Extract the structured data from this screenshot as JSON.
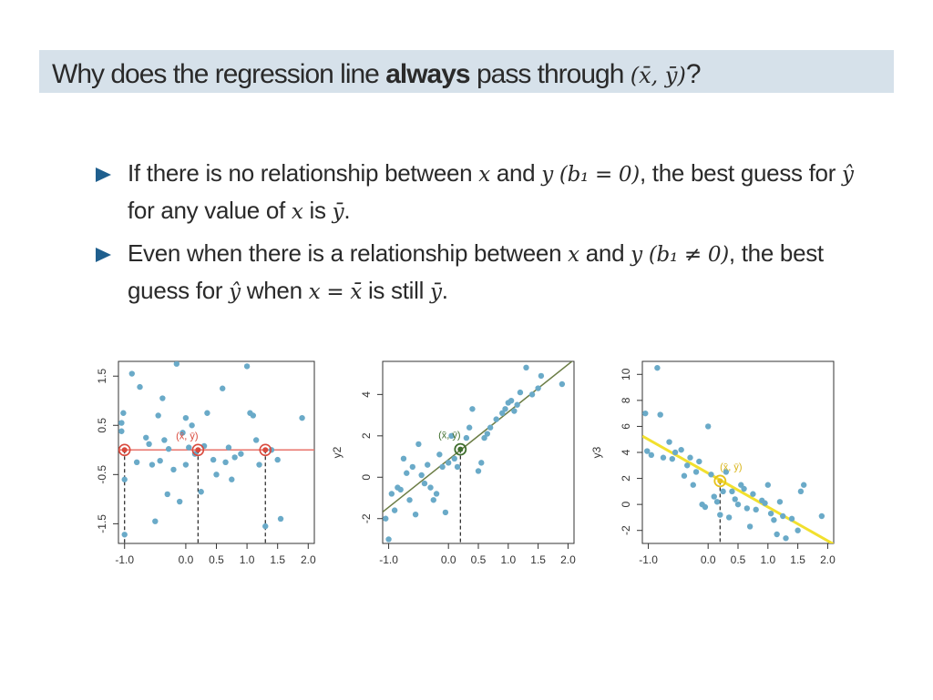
{
  "slide": {
    "title_pre": "Why does the regression line ",
    "title_bold": "always",
    "title_post": " pass through ",
    "title_math": "(x̄, ȳ)",
    "title_end": "?"
  },
  "bullets": [
    {
      "p1": "If there is no relationship between ",
      "m1": "x",
      "p2": " and ",
      "m2": "y (b₁ = 0)",
      "p3": ", the best guess for ",
      "m3": "ŷ",
      "p4": " for any value of ",
      "m4": "x",
      "p5": " is ",
      "m5": "ȳ",
      "p6": "."
    },
    {
      "p1": "Even when there is a relationship between ",
      "m1": "x",
      "p2": " and ",
      "m2": "y (b₁ ≠ 0)",
      "p3": ", the best guess for ",
      "m3": "ŷ",
      "p4": " when ",
      "m4": "x = x̄",
      "p5": " is still ",
      "m5": "ȳ",
      "p6": "."
    }
  ],
  "chart_data": [
    {
      "type": "scatter",
      "ylabel": "",
      "xlabel": "",
      "xlim": [
        -1.1,
        2.1
      ],
      "ylim": [
        -1.9,
        1.8
      ],
      "xticks": [
        "-1.0",
        "0.0",
        "0.5",
        "1.0",
        "1.5",
        "2.0"
      ],
      "xtick_values": [
        -1.0,
        0.0,
        0.5,
        1.0,
        1.5,
        2.0
      ],
      "yticks": [
        "-1.5",
        "-0.5",
        "0.5",
        "1.5"
      ],
      "ytick_values": [
        -1.5,
        -0.5,
        0.5,
        1.5
      ],
      "point_color": "#6aaac8",
      "line_color": "#e8736b",
      "line": {
        "intercept": 0.0,
        "slope": 0.0
      },
      "mean_label": "(x̄, ȳ)",
      "mean_point": [
        0.2,
        0.0
      ],
      "marked_points": [
        [
          -1.0,
          0.0
        ],
        [
          0.2,
          0.0
        ],
        [
          1.3,
          0.0
        ]
      ],
      "points": [
        [
          -1.05,
          0.55
        ],
        [
          -1.02,
          0.75
        ],
        [
          -1.05,
          0.38
        ],
        [
          -1.0,
          -0.6
        ],
        [
          -0.88,
          1.55
        ],
        [
          -0.75,
          1.28
        ],
        [
          -0.8,
          -0.25
        ],
        [
          -0.65,
          0.25
        ],
        [
          -0.6,
          0.12
        ],
        [
          -0.55,
          -0.3
        ],
        [
          -0.5,
          -1.45
        ],
        [
          -0.45,
          0.7
        ],
        [
          -0.42,
          -0.22
        ],
        [
          -0.38,
          1.05
        ],
        [
          -0.35,
          0.2
        ],
        [
          -0.3,
          -0.9
        ],
        [
          -0.28,
          0.02
        ],
        [
          -0.2,
          -0.4
        ],
        [
          -0.15,
          1.75
        ],
        [
          -0.1,
          -1.05
        ],
        [
          -0.05,
          0.35
        ],
        [
          0.0,
          -0.3
        ],
        [
          0.05,
          0.05
        ],
        [
          0.1,
          0.5
        ],
        [
          0.15,
          -0.08
        ],
        [
          0.25,
          -0.85
        ],
        [
          0.3,
          0.08
        ],
        [
          0.35,
          0.75
        ],
        [
          0.45,
          -0.2
        ],
        [
          0.5,
          -0.5
        ],
        [
          0.6,
          1.25
        ],
        [
          0.65,
          -0.25
        ],
        [
          0.7,
          0.05
        ],
        [
          0.75,
          -0.6
        ],
        [
          0.8,
          -0.15
        ],
        [
          0.9,
          -0.08
        ],
        [
          1.0,
          1.7
        ],
        [
          1.05,
          0.75
        ],
        [
          1.1,
          0.7
        ],
        [
          1.15,
          0.2
        ],
        [
          1.3,
          -1.55
        ],
        [
          1.4,
          0.0
        ],
        [
          1.5,
          -0.2
        ],
        [
          1.55,
          -1.4
        ],
        [
          1.9,
          0.65
        ],
        [
          -1.0,
          -1.72
        ],
        [
          0.0,
          0.65
        ],
        [
          1.2,
          -0.3
        ]
      ]
    },
    {
      "type": "scatter",
      "ylabel": "y2",
      "xlabel": "",
      "xlim": [
        -1.1,
        2.1
      ],
      "ylim": [
        -3.2,
        5.6
      ],
      "xticks": [
        "-1.0",
        "0.0",
        "0.5",
        "1.0",
        "1.5",
        "2.0"
      ],
      "xtick_values": [
        -1.0,
        0.0,
        0.5,
        1.0,
        1.5,
        2.0
      ],
      "yticks": [
        "-2",
        "0",
        "2",
        "4"
      ],
      "ytick_values": [
        -2,
        0,
        2,
        4
      ],
      "point_color": "#6aaac8",
      "line_color": "#6b7d45",
      "line": {
        "intercept": 0.85,
        "slope": 2.3
      },
      "mean_label": "(x̄, ȳ)",
      "mean_point": [
        0.2,
        1.35
      ],
      "marked_points": [],
      "points": [
        [
          -1.05,
          -2.0
        ],
        [
          -1.0,
          -3.0
        ],
        [
          -0.95,
          -0.8
        ],
        [
          -0.9,
          -1.6
        ],
        [
          -0.85,
          -0.5
        ],
        [
          -0.8,
          -0.6
        ],
        [
          -0.75,
          0.9
        ],
        [
          -0.7,
          0.2
        ],
        [
          -0.65,
          -1.1
        ],
        [
          -0.6,
          0.5
        ],
        [
          -0.55,
          -1.8
        ],
        [
          -0.5,
          1.6
        ],
        [
          -0.45,
          0.1
        ],
        [
          -0.4,
          -0.3
        ],
        [
          -0.35,
          0.6
        ],
        [
          -0.3,
          -0.5
        ],
        [
          -0.25,
          -1.1
        ],
        [
          -0.2,
          -0.8
        ],
        [
          -0.15,
          1.1
        ],
        [
          -0.1,
          0.5
        ],
        [
          -0.05,
          -1.7
        ],
        [
          0.0,
          0.7
        ],
        [
          0.05,
          2.0
        ],
        [
          0.1,
          0.9
        ],
        [
          0.15,
          0.5
        ],
        [
          0.3,
          1.9
        ],
        [
          0.35,
          2.4
        ],
        [
          0.4,
          3.3
        ],
        [
          0.5,
          0.3
        ],
        [
          0.55,
          0.7
        ],
        [
          0.6,
          1.9
        ],
        [
          0.65,
          2.1
        ],
        [
          0.7,
          2.4
        ],
        [
          0.8,
          2.8
        ],
        [
          0.9,
          3.1
        ],
        [
          0.95,
          3.3
        ],
        [
          1.0,
          3.6
        ],
        [
          1.05,
          3.7
        ],
        [
          1.1,
          3.2
        ],
        [
          1.15,
          3.5
        ],
        [
          1.2,
          4.1
        ],
        [
          1.3,
          5.3
        ],
        [
          1.4,
          4.0
        ],
        [
          1.5,
          4.3
        ],
        [
          1.55,
          4.9
        ],
        [
          1.9,
          4.5
        ]
      ]
    },
    {
      "type": "scatter",
      "ylabel": "y3",
      "xlabel": "",
      "xlim": [
        -1.1,
        2.1
      ],
      "ylim": [
        -3.0,
        11.0
      ],
      "xticks": [
        "-1.0",
        "0.0",
        "0.5",
        "1.0",
        "1.5",
        "2.0"
      ],
      "xtick_values": [
        -1.0,
        0.0,
        0.5,
        1.0,
        1.5,
        2.0
      ],
      "yticks": [
        "-2",
        "0",
        "2",
        "4",
        "6",
        "8",
        "10"
      ],
      "ytick_values": [
        -2,
        0,
        2,
        4,
        6,
        8,
        10
      ],
      "point_color": "#6aaac8",
      "line_color": "#f2e02e",
      "line": {
        "intercept": 2.4,
        "slope": -2.6
      },
      "mean_label": "(x̄, ȳ)",
      "mean_point": [
        0.2,
        1.8
      ],
      "marked_points": [],
      "points": [
        [
          -1.05,
          7.0
        ],
        [
          -1.02,
          4.1
        ],
        [
          -0.95,
          3.8
        ],
        [
          -0.85,
          10.5
        ],
        [
          -0.8,
          6.9
        ],
        [
          -0.75,
          3.6
        ],
        [
          -0.65,
          4.8
        ],
        [
          -0.6,
          3.5
        ],
        [
          -0.55,
          4.0
        ],
        [
          -0.45,
          4.2
        ],
        [
          -0.4,
          2.2
        ],
        [
          -0.35,
          3.0
        ],
        [
          -0.3,
          3.6
        ],
        [
          -0.25,
          1.5
        ],
        [
          -0.2,
          2.5
        ],
        [
          -0.15,
          3.3
        ],
        [
          -0.1,
          0.0
        ],
        [
          -0.05,
          -0.2
        ],
        [
          0.0,
          6.0
        ],
        [
          0.05,
          2.3
        ],
        [
          0.1,
          0.6
        ],
        [
          0.15,
          0.2
        ],
        [
          0.2,
          -0.8
        ],
        [
          0.25,
          1.0
        ],
        [
          0.3,
          2.5
        ],
        [
          0.35,
          -1.0
        ],
        [
          0.4,
          1.0
        ],
        [
          0.45,
          0.4
        ],
        [
          0.5,
          0.0
        ],
        [
          0.55,
          1.5
        ],
        [
          0.6,
          1.2
        ],
        [
          0.65,
          -0.3
        ],
        [
          0.7,
          -1.7
        ],
        [
          0.75,
          0.8
        ],
        [
          0.8,
          -0.4
        ],
        [
          0.9,
          0.3
        ],
        [
          0.95,
          0.1
        ],
        [
          1.0,
          1.5
        ],
        [
          1.05,
          -0.7
        ],
        [
          1.1,
          -1.2
        ],
        [
          1.15,
          -2.3
        ],
        [
          1.2,
          0.2
        ],
        [
          1.25,
          -0.9
        ],
        [
          1.3,
          -2.6
        ],
        [
          1.4,
          -1.1
        ],
        [
          1.5,
          -2.0
        ],
        [
          1.55,
          1.0
        ],
        [
          1.6,
          1.5
        ],
        [
          1.9,
          -0.9
        ]
      ]
    }
  ]
}
